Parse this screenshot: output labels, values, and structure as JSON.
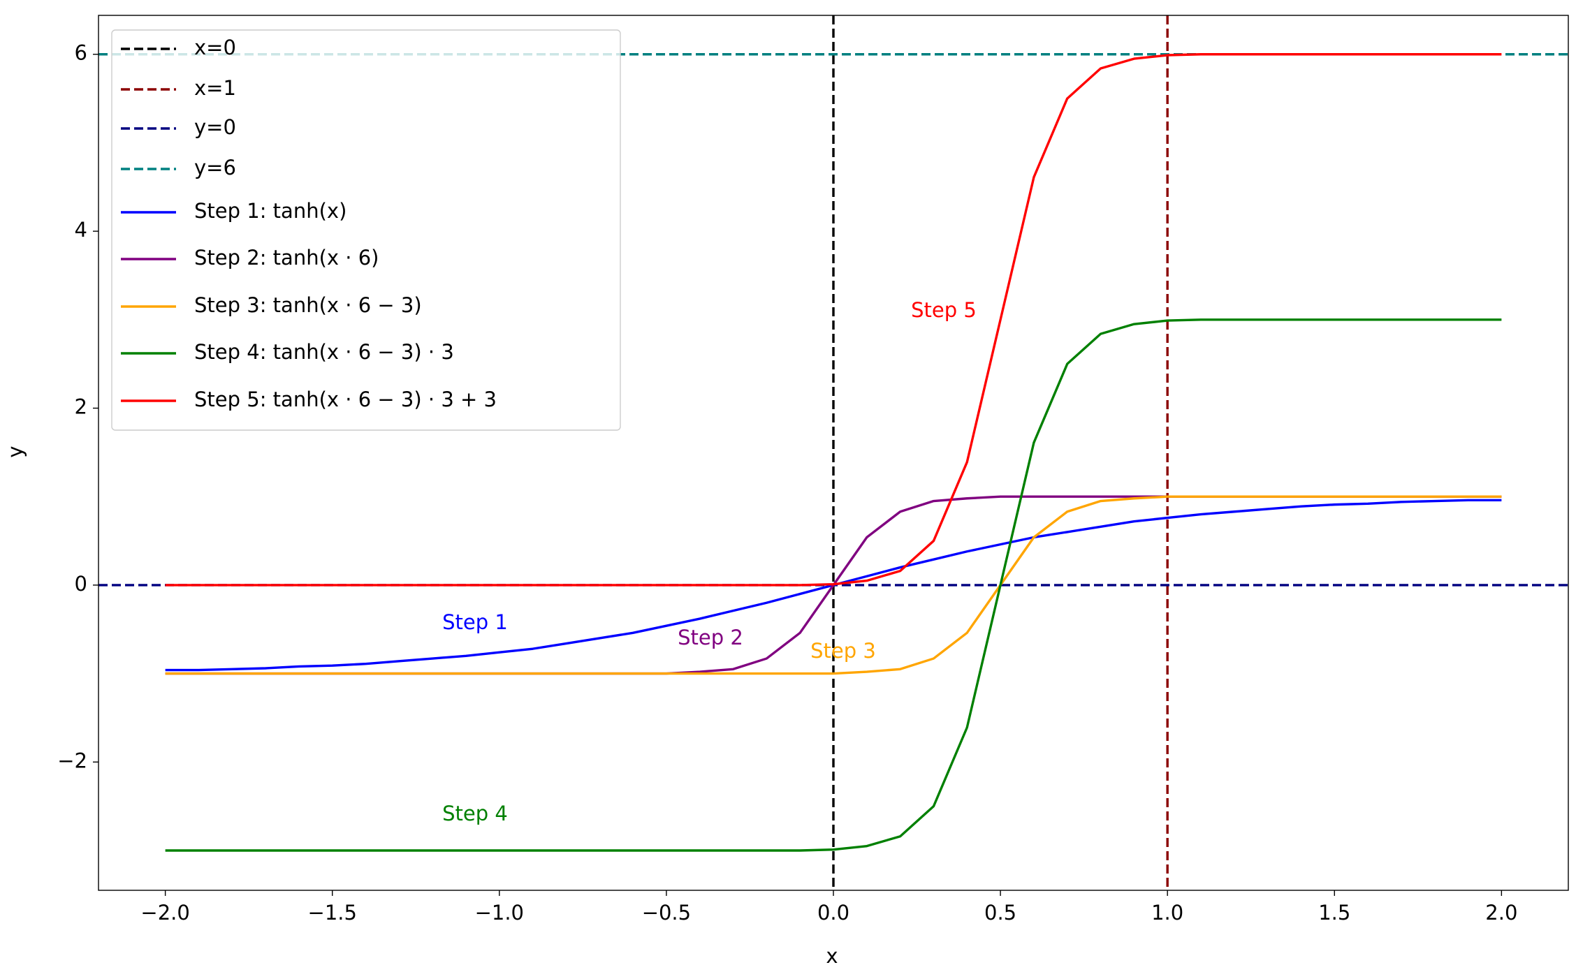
{
  "chart_data": {
    "type": "line",
    "xlabel": "x",
    "ylabel": "y",
    "xlim": [
      -2.2,
      2.2
    ],
    "ylim": [
      -3.45,
      6.44
    ],
    "xticks": [
      {
        "value": -2,
        "label": "−2.0"
      },
      {
        "value": -1.5,
        "label": "−1.5"
      },
      {
        "value": -1,
        "label": "−1.0"
      },
      {
        "value": -0.5,
        "label": "−0.5"
      },
      {
        "value": 0,
        "label": "0.0"
      },
      {
        "value": 0.5,
        "label": "0.5"
      },
      {
        "value": 1,
        "label": "1.0"
      },
      {
        "value": 1.5,
        "label": "1.5"
      },
      {
        "value": 2,
        "label": "2.0"
      }
    ],
    "yticks": [
      {
        "value": -2,
        "label": "−2"
      },
      0,
      2,
      4,
      6
    ],
    "legend": "upper left",
    "reference_lines": [
      {
        "name": "x=0",
        "axis": "x",
        "value": 0,
        "color": "#000000",
        "style": "dashed"
      },
      {
        "name": "x=1",
        "axis": "x",
        "value": 1,
        "color": "#8b0000",
        "style": "dashed"
      },
      {
        "name": "y=0",
        "axis": "y",
        "value": 0,
        "color": "#000080",
        "style": "dashed"
      },
      {
        "name": "y=6",
        "axis": "y",
        "value": 6,
        "color": "#008080",
        "style": "dashed"
      }
    ],
    "x": [
      -2,
      -1.9,
      -1.8,
      -1.7,
      -1.6,
      -1.5,
      -1.4,
      -1.3,
      -1.2,
      -1.1,
      -1,
      -0.9,
      -0.8,
      -0.7,
      -0.6,
      -0.5,
      -0.4,
      -0.3,
      -0.2,
      -0.1,
      0,
      0.1,
      0.2,
      0.3,
      0.4,
      0.5,
      0.6,
      0.7,
      0.8,
      0.9,
      1,
      1.1,
      1.2,
      1.3,
      1.4,
      1.5,
      1.6,
      1.7,
      1.8,
      1.9,
      2
    ],
    "series": [
      {
        "name": "Step 1: tanh(x)",
        "color": "#0000ff",
        "values": [
          -0.96,
          -0.96,
          -0.95,
          -0.94,
          -0.92,
          -0.91,
          -0.89,
          -0.86,
          -0.83,
          -0.8,
          -0.76,
          -0.72,
          -0.66,
          -0.6,
          -0.54,
          -0.46,
          -0.38,
          -0.29,
          -0.2,
          -0.1,
          0,
          0.1,
          0.2,
          0.29,
          0.38,
          0.46,
          0.54,
          0.6,
          0.66,
          0.72,
          0.76,
          0.8,
          0.83,
          0.86,
          0.89,
          0.91,
          0.92,
          0.94,
          0.95,
          0.96,
          0.96
        ]
      },
      {
        "name": "Step 2: tanh(x · 6)",
        "color": "#800080",
        "values": [
          -1,
          -1,
          -1,
          -1,
          -1,
          -1,
          -1,
          -1,
          -1,
          -1,
          -1,
          -1,
          -1,
          -1,
          -1,
          -1,
          -0.98,
          -0.95,
          -0.83,
          -0.54,
          0,
          0.54,
          0.83,
          0.95,
          0.98,
          1,
          1,
          1,
          1,
          1,
          1,
          1,
          1,
          1,
          1,
          1,
          1,
          1,
          1,
          1,
          1
        ]
      },
      {
        "name": "Step 3: tanh(x · 6 − 3)",
        "color": "#ffa500",
        "values": [
          -1,
          -1,
          -1,
          -1,
          -1,
          -1,
          -1,
          -1,
          -1,
          -1,
          -1,
          -1,
          -1,
          -1,
          -1,
          -1,
          -1,
          -1,
          -1,
          -1,
          -1,
          -0.98,
          -0.95,
          -0.83,
          -0.54,
          0,
          0.54,
          0.83,
          0.95,
          0.98,
          1,
          1,
          1,
          1,
          1,
          1,
          1,
          1,
          1,
          1,
          1
        ]
      },
      {
        "name": "Step 4: tanh(x · 6 − 3) · 3",
        "color": "#008000",
        "values": [
          -3,
          -3,
          -3,
          -3,
          -3,
          -3,
          -3,
          -3,
          -3,
          -3,
          -3,
          -3,
          -3,
          -3,
          -3,
          -3,
          -3,
          -3,
          -3,
          -3,
          -2.99,
          -2.95,
          -2.84,
          -2.5,
          -1.61,
          0,
          1.61,
          2.5,
          2.84,
          2.95,
          2.99,
          3,
          3,
          3,
          3,
          3,
          3,
          3,
          3,
          3,
          3
        ]
      },
      {
        "name": "Step 5: tanh(x · 6 − 3) · 3 + 3",
        "color": "#ff0000",
        "values": [
          0,
          0,
          0,
          0,
          0,
          0,
          0,
          0,
          0,
          0,
          0,
          0,
          0,
          0,
          0,
          0,
          0,
          0,
          0,
          0,
          0.01,
          0.05,
          0.16,
          0.5,
          1.39,
          3,
          4.61,
          5.5,
          5.84,
          5.95,
          5.99,
          6,
          6,
          6,
          6,
          6,
          6,
          6,
          6,
          6,
          6
        ]
      }
    ],
    "annotations": [
      {
        "text": "Step 1",
        "color": "#0000ff"
      },
      {
        "text": "Step 2",
        "color": "#800080"
      },
      {
        "text": "Step 3",
        "color": "#ffa500"
      },
      {
        "text": "Step 4",
        "color": "#008000"
      },
      {
        "text": "Step 5",
        "color": "#ff0000"
      }
    ]
  }
}
